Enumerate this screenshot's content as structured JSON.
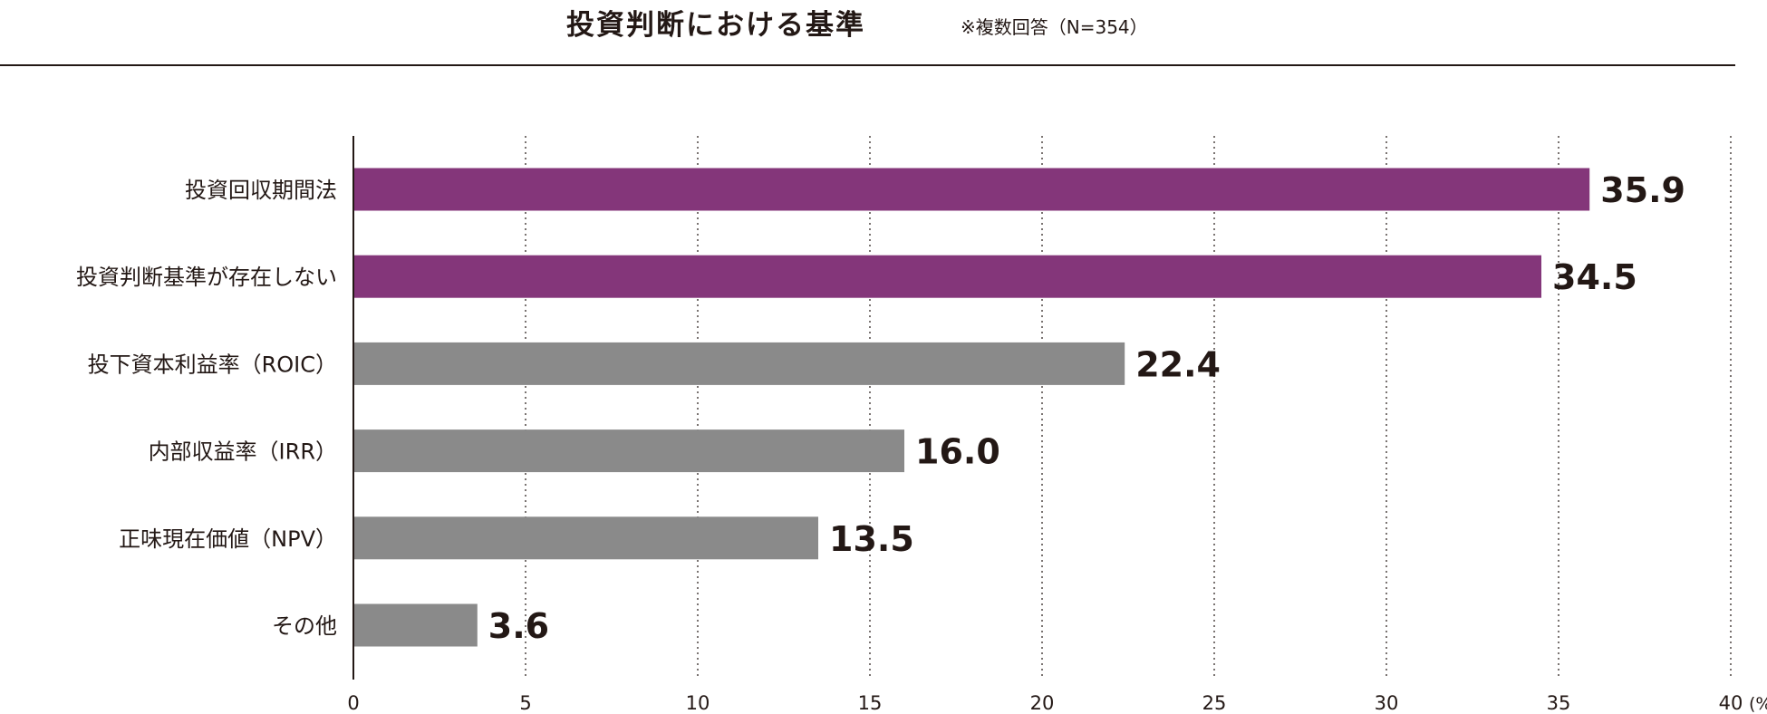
{
  "title": "投資判断における基準",
  "note": "※複数回答（N=354）",
  "colors": {
    "highlight": "#84367A",
    "default": "#8A8A8A",
    "text": "#231815"
  },
  "chart_data": {
    "type": "bar",
    "orientation": "horizontal",
    "title": "投資判断における基準",
    "subtitle": "※複数回答（N=354）",
    "unit": "(%)",
    "categories": [
      "投資回収期間法",
      "投資判断基準が存在しない",
      "投下資本利益率（ROIC）",
      "内部収益率（IRR）",
      "正味現在価値（NPV）",
      "その他"
    ],
    "values": [
      35.9,
      34.5,
      22.4,
      16.0,
      13.5,
      3.6
    ],
    "value_labels": [
      "35.9",
      "34.5",
      "22.4",
      "16.0",
      "13.5",
      "3.6"
    ],
    "highlighted": [
      true,
      true,
      false,
      false,
      false,
      false
    ],
    "xlim": [
      0,
      40
    ],
    "xticks": [
      0,
      5,
      10,
      15,
      20,
      25,
      30,
      35,
      40
    ],
    "grid": "vertical dotted"
  }
}
